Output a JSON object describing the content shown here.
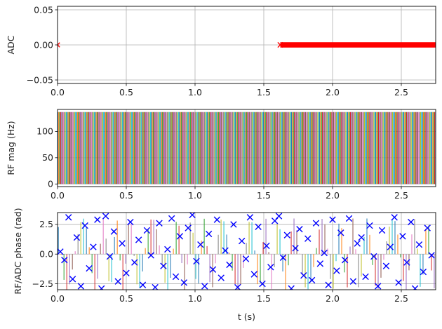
{
  "chart_data": [
    {
      "type": "scatter",
      "ylabel": "ADC",
      "xlim": [
        0,
        2.75
      ],
      "ylim": [
        -0.055,
        0.055
      ],
      "grid": true,
      "xticks": [
        0.0,
        0.5,
        1.0,
        1.5,
        2.0,
        2.5
      ],
      "xtick_labels": [
        "0.0",
        "0.5",
        "1.0",
        "1.5",
        "2.0",
        "2.5"
      ],
      "yticks": [
        -0.05,
        0.0,
        0.05
      ],
      "ytick_labels": [
        "−0.05",
        "0.00",
        "0.05"
      ],
      "series": [
        {
          "marker": "x",
          "color": "#ff0000",
          "x": [
            0.0
          ],
          "y": [
            0
          ]
        },
        {
          "style": "dense-markers",
          "color": "#ff0000",
          "x_range": [
            1.62,
            2.75
          ],
          "y": 0
        }
      ]
    },
    {
      "type": "line",
      "style": "vertical-spikes",
      "ylabel": "RF mag (Hz)",
      "xlim": [
        0,
        2.75
      ],
      "ylim": [
        -5,
        142
      ],
      "grid": true,
      "xticks": [
        0.0,
        0.5,
        1.0,
        1.5,
        2.0,
        2.5
      ],
      "xtick_labels": [
        "0.0",
        "0.5",
        "1.0",
        "1.5",
        "2.0",
        "2.5"
      ],
      "yticks": [
        0,
        50,
        100
      ],
      "ytick_labels": [
        "0",
        "50",
        "100"
      ],
      "pulse_amplitude": 137,
      "pulse_spacing": 0.0068,
      "pulse_start": 0.002,
      "colors": [
        "#1f77b4",
        "#ff7f0e",
        "#2ca02c",
        "#d62728",
        "#9467bd",
        "#8c564b",
        "#e377c2",
        "#7f7f7f",
        "#bcbd22",
        "#17becf"
      ]
    },
    {
      "type": "scatter",
      "ylabel": "RF/ADC phase (rad)",
      "xlabel": "t (s)",
      "xlim": [
        0,
        2.75
      ],
      "ylim": [
        -3.0,
        3.5
      ],
      "grid": true,
      "xticks": [
        0.0,
        0.5,
        1.0,
        1.5,
        2.0,
        2.5
      ],
      "xtick_labels": [
        "0.0",
        "0.5",
        "1.0",
        "1.5",
        "2.0",
        "2.5"
      ],
      "yticks": [
        -2.5,
        0.0,
        2.5
      ],
      "ytick_labels": [
        "−2.5",
        "0.0",
        "2.5"
      ],
      "marker_series": {
        "marker": "x",
        "color": "#0000ff",
        "x": [
          0.02,
          0.05,
          0.08,
          0.11,
          0.14,
          0.17,
          0.2,
          0.23,
          0.26,
          0.29,
          0.32,
          0.35,
          0.38,
          0.41,
          0.44,
          0.47,
          0.5,
          0.53,
          0.56,
          0.59,
          0.62,
          0.65,
          0.68,
          0.71,
          0.74,
          0.77,
          0.8,
          0.83,
          0.86,
          0.89,
          0.92,
          0.95,
          0.98,
          1.01,
          1.04,
          1.07,
          1.1,
          1.13,
          1.16,
          1.19,
          1.22,
          1.25,
          1.28,
          1.31,
          1.34,
          1.37,
          1.4,
          1.43,
          1.46,
          1.49,
          1.52,
          1.55,
          1.58,
          1.61,
          1.64,
          1.67,
          1.7,
          1.73,
          1.76,
          1.79,
          1.82,
          1.85,
          1.88,
          1.91,
          1.94,
          1.97,
          2.0,
          2.03,
          2.06,
          2.09,
          2.12,
          2.15,
          2.18,
          2.21,
          2.24,
          2.27,
          2.3,
          2.33,
          2.36,
          2.39,
          2.42,
          2.45,
          2.48,
          2.51,
          2.54,
          2.57,
          2.6,
          2.63,
          2.66,
          2.69,
          2.72
        ],
        "y": [
          0.2,
          -0.5,
          3.1,
          -2.1,
          1.4,
          -2.7,
          2.4,
          -1.2,
          0.6,
          2.9,
          -2.9,
          3.2,
          -0.2,
          1.9,
          -2.3,
          0.9,
          -1.6,
          2.7,
          -0.7,
          1.2,
          -2.6,
          2.0,
          -0.1,
          -2.8,
          2.6,
          -1.0,
          0.4,
          3.0,
          -1.9,
          1.5,
          -2.4,
          2.2,
          3.3,
          -0.6,
          0.8,
          -2.7,
          1.7,
          -1.3,
          2.9,
          -2.0,
          0.3,
          -0.9,
          2.5,
          -2.8,
          1.1,
          -0.4,
          3.1,
          -1.7,
          2.3,
          -2.5,
          0.7,
          -1.1,
          2.8,
          3.2,
          -0.3,
          1.6,
          -2.9,
          0.5,
          2.1,
          -1.8,
          1.3,
          -2.2,
          2.6,
          -0.8,
          0.1,
          -2.6,
          2.9,
          -1.4,
          1.8,
          -0.5,
          3.0,
          -2.3,
          0.9,
          1.4,
          -1.9,
          2.4,
          -0.2,
          -2.7,
          2.0,
          -1.0,
          0.6,
          3.1,
          -2.4,
          1.5,
          -0.7,
          2.7,
          -2.9,
          0.8,
          -1.5,
          2.2,
          -0.1
        ]
      },
      "spike_series": {
        "style": "vertical-spikes",
        "spacing": 0.0204,
        "start": 0.006,
        "colors": [
          "#1f77b4",
          "#ff7f0e",
          "#2ca02c",
          "#d62728",
          "#9467bd",
          "#8c564b",
          "#e377c2",
          "#7f7f7f",
          "#bcbd22",
          "#17becf"
        ]
      }
    }
  ]
}
